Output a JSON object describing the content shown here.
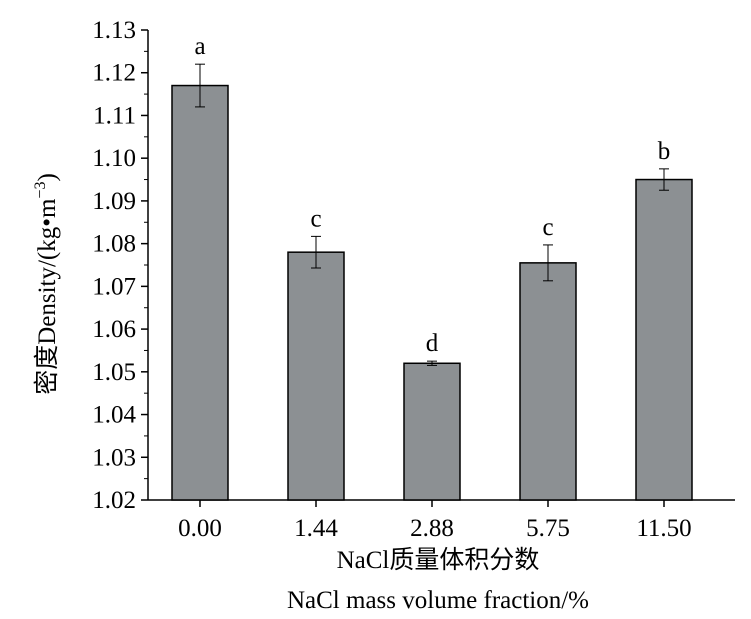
{
  "chart_data": {
    "type": "bar",
    "categories": [
      "0.00",
      "1.44",
      "2.88",
      "5.75",
      "11.50"
    ],
    "values": [
      1.117,
      1.078,
      1.052,
      1.0755,
      1.095
    ],
    "errors": [
      0.005,
      0.0037,
      0.0005,
      0.0042,
      0.0025
    ],
    "significance": [
      "a",
      "c",
      "d",
      "c",
      "b"
    ],
    "xlabel_line1": "NaCl质量体积分数",
    "xlabel_line2": "NaCl mass volume fraction/%",
    "ylabel": "密度Density/(kg•m",
    "ylabel_sup": "−3",
    "ylabel_close": ")",
    "ylim": [
      1.02,
      1.13
    ],
    "yticks": [
      "1.02",
      "1.03",
      "1.04",
      "1.05",
      "1.06",
      "1.07",
      "1.08",
      "1.09",
      "1.10",
      "1.11",
      "1.12",
      "1.13"
    ],
    "bar_color": "#8c9093",
    "grid": false,
    "legend": "none"
  }
}
